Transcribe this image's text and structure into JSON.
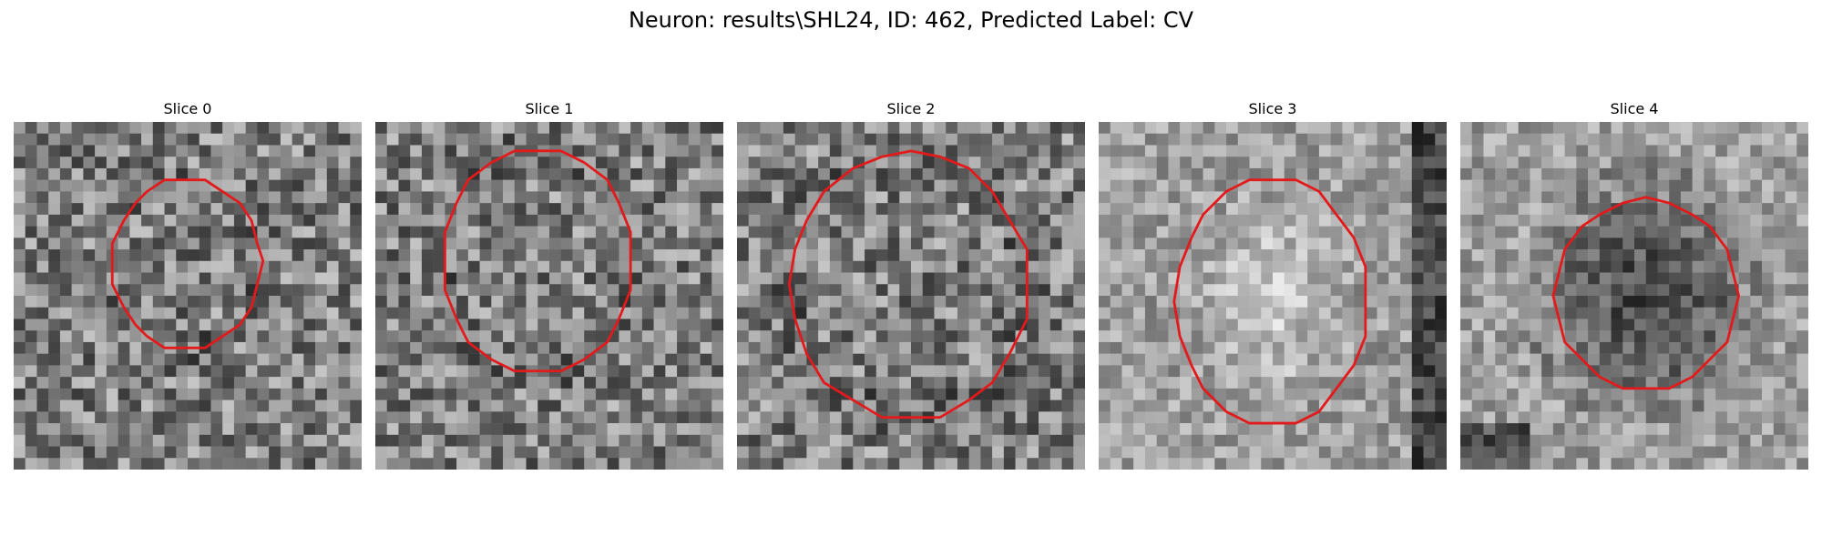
{
  "figure": {
    "title": "Neuron: results\\SHL24, ID: 462, Predicted Label: CV",
    "contour_color": "#e31a1c"
  },
  "slices": [
    {
      "label": "Slice 0",
      "shade": "mixed"
    },
    {
      "label": "Slice 1",
      "shade": "mixed"
    },
    {
      "label": "Slice 2",
      "shade": "mixed"
    },
    {
      "label": "Slice 3",
      "shade": "bright-center"
    },
    {
      "label": "Slice 4",
      "shade": "dark-center"
    }
  ]
}
